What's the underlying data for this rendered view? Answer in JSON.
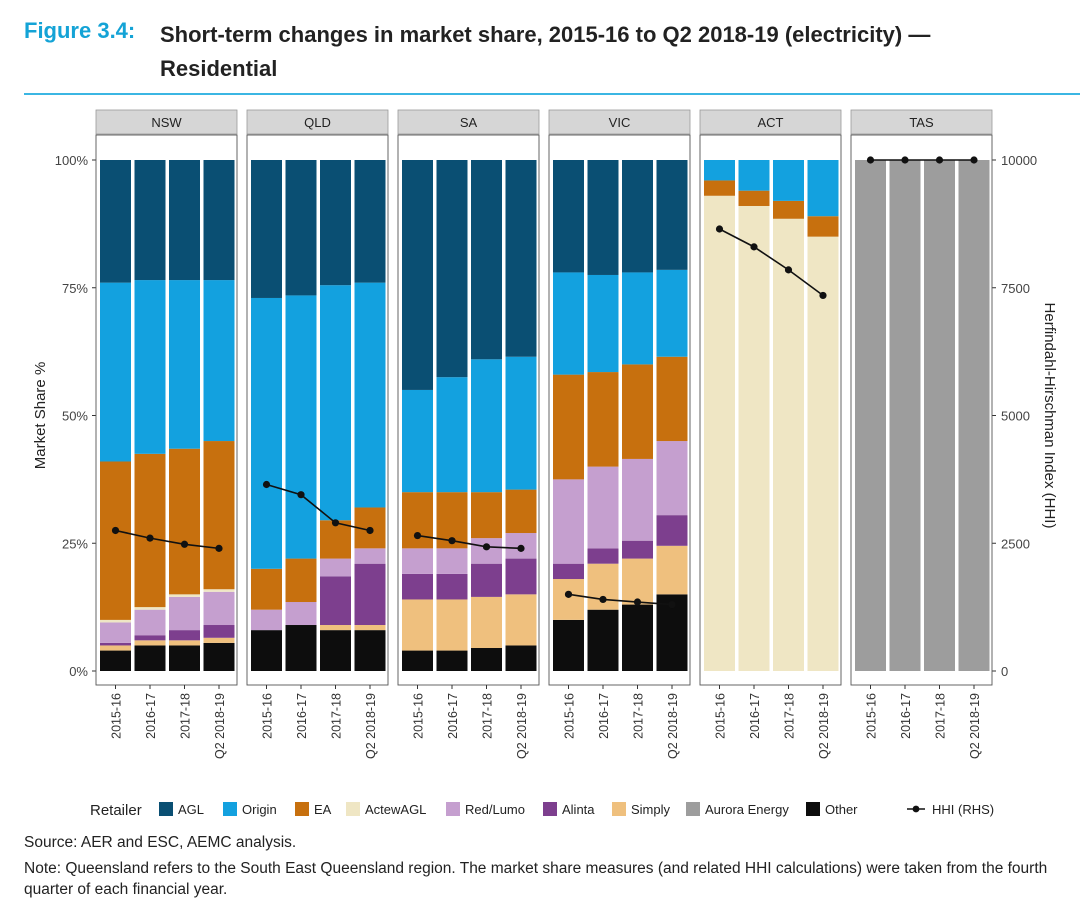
{
  "figure": {
    "number_label": "Figure 3.4:",
    "title": "Short-term changes in market share, 2015-16 to Q2 2018-19 (electricity) — Residential",
    "source": "Source: AER and ESC, AEMC analysis.",
    "note_head": "Note: ",
    "note_body": "Queensland refers to the South East Queensland region. The market share measures (and related HHI calculations) were taken from the fourth quarter of each financial year."
  },
  "colors": {
    "AGL": "#0a4f73",
    "Origin": "#13a1df",
    "EA": "#c7700e",
    "ActewAGL": "#efe6c4",
    "Red/Lumo": "#c59fcf",
    "Alinta": "#7d3f8e",
    "Simply": "#efc07e",
    "Aurora Energy": "#9d9d9d",
    "Other": "#0d0d0d",
    "hhi": "#111111",
    "strip": "#d6d6d6"
  },
  "chart_data": {
    "type": "bar",
    "subtype": "stacked-bar-faceted-with-line",
    "ylabel": "Market Share %",
    "y2label": "Herfindahl-Hirschman Index (HHI)",
    "ylim": [
      0,
      100
    ],
    "y2lim": [
      0,
      10000
    ],
    "y_ticks": [
      "0%",
      "25%",
      "50%",
      "75%",
      "100%"
    ],
    "y2_ticks": [
      "0",
      "2500",
      "5000",
      "7500",
      "10000"
    ],
    "categories": [
      "2015-16",
      "2016-17",
      "2017-18",
      "Q2 2018-19"
    ],
    "legend_title": "Retailer",
    "legend_position": "bottom",
    "series_order": [
      "Other",
      "Aurora Energy",
      "Simply",
      "Alinta",
      "Red/Lumo",
      "ActewAGL",
      "EA",
      "Origin",
      "AGL"
    ],
    "legend": [
      {
        "name": "AGL",
        "kind": "box"
      },
      {
        "name": "Origin",
        "kind": "box"
      },
      {
        "name": "EA",
        "kind": "box"
      },
      {
        "name": "ActewAGL",
        "kind": "box"
      },
      {
        "name": "Red/Lumo",
        "kind": "box"
      },
      {
        "name": "Alinta",
        "kind": "box"
      },
      {
        "name": "Simply",
        "kind": "box"
      },
      {
        "name": "Aurora Energy",
        "kind": "box"
      },
      {
        "name": "Other",
        "kind": "box"
      },
      {
        "name": "HHI (RHS)",
        "kind": "line"
      }
    ],
    "panels": [
      {
        "name": "NSW",
        "shares": {
          "Other": [
            4,
            5,
            5,
            5.5
          ],
          "Aurora Energy": [
            0,
            0,
            0,
            0
          ],
          "Simply": [
            1,
            1,
            1,
            1
          ],
          "Alinta": [
            0.5,
            1,
            2,
            2.5
          ],
          "Red/Lumo": [
            4,
            5,
            6.5,
            6.5
          ],
          "ActewAGL": [
            0.5,
            0.5,
            0.5,
            0.5
          ],
          "EA": [
            31,
            30,
            28.5,
            29
          ],
          "Origin": [
            35,
            34,
            33,
            31.5
          ],
          "AGL": [
            24,
            23.5,
            23.5,
            23.5
          ]
        },
        "hhi": [
          2750,
          2600,
          2480,
          2400
        ]
      },
      {
        "name": "QLD",
        "shares": {
          "Other": [
            8,
            9,
            8,
            8
          ],
          "Aurora Energy": [
            0,
            0,
            0,
            0
          ],
          "Simply": [
            0,
            0,
            1,
            1
          ],
          "Alinta": [
            0,
            0,
            9.5,
            12
          ],
          "Red/Lumo": [
            4,
            4.5,
            3.5,
            3
          ],
          "ActewAGL": [
            0,
            0,
            0,
            0
          ],
          "EA": [
            8,
            8.5,
            7.5,
            8
          ],
          "Origin": [
            53,
            51.5,
            46,
            44
          ],
          "AGL": [
            27,
            26.5,
            24.5,
            24
          ]
        },
        "hhi": [
          3650,
          3450,
          2900,
          2750
        ]
      },
      {
        "name": "SA",
        "shares": {
          "Other": [
            4,
            4,
            4.5,
            5
          ],
          "Aurora Energy": [
            0,
            0,
            0,
            0
          ],
          "Simply": [
            10,
            10,
            10,
            10
          ],
          "Alinta": [
            5,
            5,
            6.5,
            7
          ],
          "Red/Lumo": [
            5,
            5,
            5,
            5
          ],
          "ActewAGL": [
            0,
            0,
            0,
            0
          ],
          "EA": [
            11,
            11,
            9,
            8.5
          ],
          "Origin": [
            20,
            22.5,
            26,
            26
          ],
          "AGL": [
            45,
            42.5,
            39,
            38.5
          ]
        },
        "hhi": [
          2650,
          2550,
          2430,
          2400
        ]
      },
      {
        "name": "VIC",
        "shares": {
          "Other": [
            10,
            12,
            13,
            15
          ],
          "Aurora Energy": [
            0,
            0,
            0,
            0
          ],
          "Simply": [
            8,
            9,
            9,
            9.5
          ],
          "Alinta": [
            3,
            3,
            3.5,
            6
          ],
          "Red/Lumo": [
            16.5,
            16,
            16,
            14.5
          ],
          "ActewAGL": [
            0,
            0,
            0,
            0
          ],
          "EA": [
            20.5,
            18.5,
            18.5,
            16.5
          ],
          "Origin": [
            20,
            19,
            18,
            17
          ],
          "AGL": [
            22,
            22.5,
            22,
            21.5
          ]
        },
        "hhi": [
          1500,
          1400,
          1350,
          1300
        ]
      },
      {
        "name": "ACT",
        "shares": {
          "Other": [
            0,
            0,
            0,
            0
          ],
          "Aurora Energy": [
            0,
            0,
            0,
            0
          ],
          "Simply": [
            0,
            0,
            0,
            0
          ],
          "Alinta": [
            0,
            0,
            0,
            0
          ],
          "Red/Lumo": [
            0,
            0,
            0,
            0
          ],
          "ActewAGL": [
            93,
            91,
            88.5,
            85
          ],
          "EA": [
            3,
            3,
            3.5,
            4
          ],
          "Origin": [
            4,
            6,
            8,
            11
          ],
          "AGL": [
            0,
            0,
            0,
            0
          ]
        },
        "hhi": [
          8650,
          8300,
          7850,
          7350
        ]
      },
      {
        "name": "TAS",
        "shares": {
          "Other": [
            0,
            0,
            0,
            0
          ],
          "Aurora Energy": [
            100,
            100,
            100,
            100
          ],
          "Simply": [
            0,
            0,
            0,
            0
          ],
          "Alinta": [
            0,
            0,
            0,
            0
          ],
          "Red/Lumo": [
            0,
            0,
            0,
            0
          ],
          "ActewAGL": [
            0,
            0,
            0,
            0
          ],
          "EA": [
            0,
            0,
            0,
            0
          ],
          "Origin": [
            0,
            0,
            0,
            0
          ],
          "AGL": [
            0,
            0,
            0,
            0
          ]
        },
        "hhi": [
          10000,
          10000,
          10000,
          10000
        ]
      }
    ]
  }
}
